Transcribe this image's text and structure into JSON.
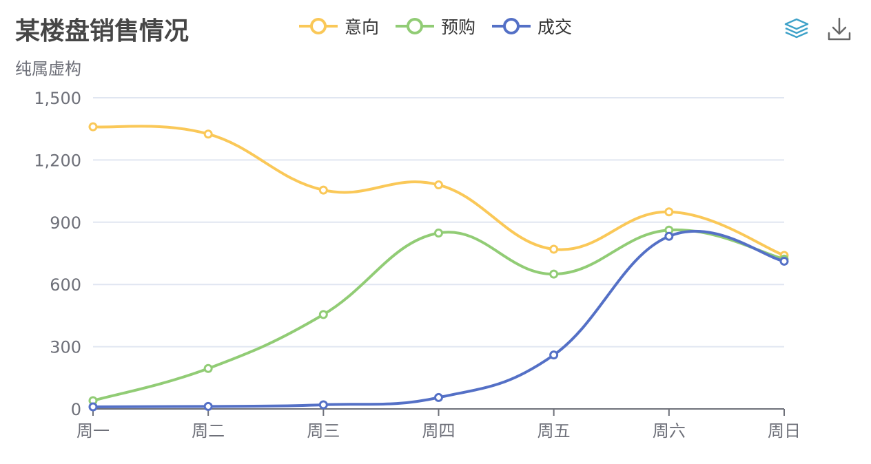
{
  "title": "某楼盘销售情况",
  "subtitle": "纯属虚构",
  "legend": [
    {
      "name": "意向",
      "color": "#fac858"
    },
    {
      "name": "预购",
      "color": "#91cc75"
    },
    {
      "name": "成交",
      "color": "#5470c6"
    }
  ],
  "toolbox": [
    {
      "icon": "layers-icon"
    },
    {
      "icon": "download-icon"
    }
  ],
  "chart_data": {
    "type": "line",
    "smooth": true,
    "title": "某楼盘销售情况",
    "subtitle": "纯属虚构",
    "categories": [
      "周一",
      "周二",
      "周三",
      "周四",
      "周五",
      "周六",
      "周日"
    ],
    "y_ticks": [
      "0",
      "300",
      "600",
      "900",
      "1,200",
      "1,500"
    ],
    "ylim": [
      0,
      1500
    ],
    "grid": true,
    "legend_position": "top-center",
    "series": [
      {
        "name": "意向",
        "color": "#fac858",
        "values": [
          1360,
          1325,
          1055,
          1080,
          770,
          950,
          740
        ]
      },
      {
        "name": "预购",
        "color": "#91cc75",
        "values": [
          40,
          195,
          455,
          848,
          650,
          862,
          722
        ]
      },
      {
        "name": "成交",
        "color": "#5470c6",
        "values": [
          10,
          12,
          20,
          55,
          260,
          832,
          712
        ]
      }
    ]
  }
}
